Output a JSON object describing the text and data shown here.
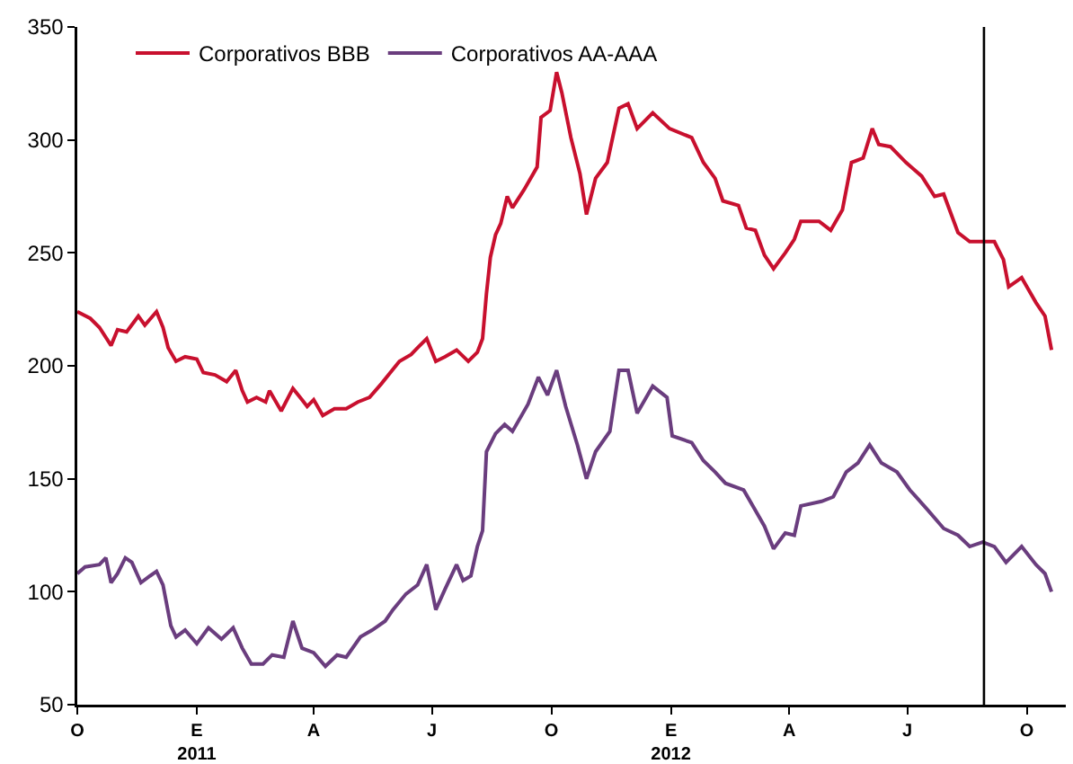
{
  "chart_data": {
    "type": "line",
    "xlim": [
      "2010-10-01",
      "2012-10-31"
    ],
    "ylim": [
      50,
      350
    ],
    "yticks": [
      50,
      100,
      150,
      200,
      250,
      300,
      350
    ],
    "xticks": [
      {
        "value": "2010-10-01",
        "label": "O"
      },
      {
        "value": "2011-01-01",
        "label": "E\n2011"
      },
      {
        "value": "2011-04-01",
        "label": "A"
      },
      {
        "value": "2011-07-01",
        "label": "J"
      },
      {
        "value": "2011-10-01",
        "label": "O"
      },
      {
        "value": "2012-01-01",
        "label": "E\n2012"
      },
      {
        "value": "2012-04-01",
        "label": "A"
      },
      {
        "value": "2012-07-01",
        "label": "J"
      },
      {
        "value": "2012-10-01",
        "label": "O"
      }
    ],
    "grid": false,
    "legend": "top left",
    "marker": "none",
    "line_style": "solid",
    "ref_lines": [
      {
        "axis": "x",
        "value": "2012-08-29",
        "color": "#000000"
      }
    ],
    "series": [
      {
        "name": "Corporativos BBB",
        "color": "#c8102e",
        "x": [
          "2010-10-01",
          "2010-10-11",
          "2010-10-18",
          "2010-10-27",
          "2010-11-01",
          "2010-11-08",
          "2010-11-17",
          "2010-11-22",
          "2010-12-01",
          "2010-12-06",
          "2010-12-10",
          "2010-12-16",
          "2010-12-23",
          "2011-01-01",
          "2011-01-06",
          "2011-01-15",
          "2011-01-24",
          "2011-01-31",
          "2011-02-05",
          "2011-02-09",
          "2011-02-16",
          "2011-02-23",
          "2011-02-26",
          "2011-03-07",
          "2011-03-16",
          "2011-03-23",
          "2011-03-27",
          "2011-04-01",
          "2011-04-08",
          "2011-04-17",
          "2011-04-26",
          "2011-05-05",
          "2011-05-14",
          "2011-05-23",
          "2011-05-30",
          "2011-06-06",
          "2011-06-15",
          "2011-06-20",
          "2011-06-27",
          "2011-07-04",
          "2011-07-11",
          "2011-07-20",
          "2011-07-29",
          "2011-08-05",
          "2011-08-09",
          "2011-08-12",
          "2011-08-15",
          "2011-08-19",
          "2011-08-23",
          "2011-08-28",
          "2011-09-01",
          "2011-09-10",
          "2011-09-20",
          "2011-09-23",
          "2011-09-30",
          "2011-10-05",
          "2011-10-09",
          "2011-10-16",
          "2011-10-23",
          "2011-10-28",
          "2011-11-04",
          "2011-11-13",
          "2011-11-22",
          "2011-11-29",
          "2011-12-06",
          "2011-12-18",
          "2011-12-31",
          "2012-01-17",
          "2012-01-26",
          "2012-02-04",
          "2012-02-10",
          "2012-02-22",
          "2012-02-28",
          "2012-03-06",
          "2012-03-13",
          "2012-03-20",
          "2012-03-29",
          "2012-04-05",
          "2012-04-10",
          "2012-04-24",
          "2012-05-03",
          "2012-05-12",
          "2012-05-19",
          "2012-05-28",
          "2012-06-04",
          "2012-06-09",
          "2012-06-18",
          "2012-06-30",
          "2012-07-12",
          "2012-07-22",
          "2012-07-29",
          "2012-08-09",
          "2012-08-18",
          "2012-08-28",
          "2012-09-06",
          "2012-09-13",
          "2012-09-17",
          "2012-09-27",
          "2012-10-01",
          "2012-10-08",
          "2012-10-15",
          "2012-10-20"
        ],
        "values": [
          224,
          221,
          217,
          209,
          216,
          215,
          222,
          218,
          224,
          217,
          208,
          202,
          204,
          203,
          197,
          196,
          193,
          198,
          189,
          184,
          186,
          184,
          189,
          180,
          190,
          185,
          182,
          185,
          178,
          181,
          181,
          184,
          186,
          192,
          197,
          202,
          205,
          208,
          212,
          202,
          204,
          207,
          202,
          206,
          212,
          232,
          248,
          258,
          263,
          275,
          270,
          278,
          288,
          310,
          313,
          330,
          321,
          301,
          285,
          267,
          283,
          290,
          314,
          316,
          305,
          312,
          305,
          301,
          290,
          283,
          273,
          271,
          261,
          260,
          249,
          243,
          250,
          256,
          264,
          264,
          260,
          269,
          290,
          292,
          305,
          298,
          297,
          290,
          284,
          275,
          276,
          259,
          255,
          255,
          255,
          247,
          235,
          239,
          235,
          228,
          222,
          207
        ]
      },
      {
        "name": "Corporativos AA-AAA",
        "color": "#6a3d7e",
        "x": [
          "2010-10-01",
          "2010-10-07",
          "2010-10-18",
          "2010-10-23",
          "2010-10-27",
          "2010-11-01",
          "2010-11-07",
          "2010-11-12",
          "2010-11-19",
          "2010-11-26",
          "2010-12-01",
          "2010-12-06",
          "2010-12-12",
          "2010-12-16",
          "2010-12-23",
          "2011-01-01",
          "2011-01-10",
          "2011-01-20",
          "2011-01-29",
          "2011-02-05",
          "2011-02-12",
          "2011-02-21",
          "2011-02-28",
          "2011-03-09",
          "2011-03-16",
          "2011-03-23",
          "2011-04-01",
          "2011-04-10",
          "2011-04-19",
          "2011-04-26",
          "2011-05-07",
          "2011-05-16",
          "2011-05-26",
          "2011-06-01",
          "2011-06-11",
          "2011-06-20",
          "2011-06-27",
          "2011-07-04",
          "2011-07-11",
          "2011-07-20",
          "2011-07-25",
          "2011-07-31",
          "2011-08-05",
          "2011-08-09",
          "2011-08-12",
          "2011-08-19",
          "2011-08-26",
          "2011-09-01",
          "2011-09-13",
          "2011-09-21",
          "2011-09-28",
          "2011-10-05",
          "2011-10-12",
          "2011-10-21",
          "2011-10-28",
          "2011-11-04",
          "2011-11-15",
          "2011-11-22",
          "2011-11-29",
          "2011-12-06",
          "2011-12-18",
          "2011-12-29",
          "2012-01-02",
          "2012-01-17",
          "2012-01-26",
          "2012-02-04",
          "2012-02-12",
          "2012-02-26",
          "2012-03-06",
          "2012-03-13",
          "2012-03-20",
          "2012-03-29",
          "2012-04-05",
          "2012-04-10",
          "2012-04-26",
          "2012-05-05",
          "2012-05-15",
          "2012-05-24",
          "2012-06-02",
          "2012-06-11",
          "2012-06-23",
          "2012-07-03",
          "2012-07-17",
          "2012-07-29",
          "2012-08-09",
          "2012-08-18",
          "2012-08-28",
          "2012-09-06",
          "2012-09-15",
          "2012-09-27",
          "2012-10-08",
          "2012-10-15",
          "2012-10-20"
        ],
        "values": [
          108,
          111,
          112,
          115,
          104,
          108,
          115,
          113,
          104,
          107,
          109,
          103,
          85,
          80,
          83,
          77,
          84,
          79,
          84,
          75,
          68,
          68,
          72,
          71,
          87,
          75,
          73,
          67,
          72,
          71,
          80,
          83,
          87,
          92,
          99,
          103,
          112,
          92,
          101,
          112,
          105,
          107,
          120,
          127,
          162,
          170,
          174,
          171,
          183,
          195,
          187,
          198,
          182,
          165,
          150,
          162,
          171,
          198,
          198,
          179,
          191,
          186,
          169,
          166,
          158,
          153,
          148,
          145,
          136,
          129,
          119,
          126,
          125,
          138,
          140,
          142,
          153,
          157,
          165,
          157,
          153,
          145,
          136,
          128,
          125,
          120,
          122,
          120,
          113,
          120,
          112,
          108,
          100
        ]
      }
    ]
  }
}
